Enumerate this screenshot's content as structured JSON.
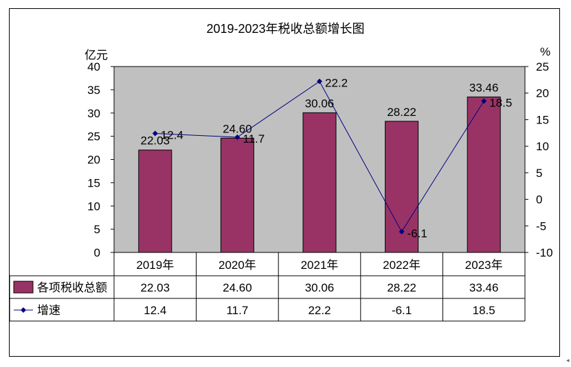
{
  "chart_data": {
    "type": "bar",
    "title": "2019-2023年税收总额增长图",
    "categories": [
      "2019年",
      "2020年",
      "2021年",
      "2022年",
      "2023年"
    ],
    "y_left": {
      "unit": "亿元",
      "ylim": [
        0,
        40
      ],
      "ticks": [
        0,
        5,
        10,
        15,
        20,
        25,
        30,
        35,
        40
      ]
    },
    "y_right": {
      "unit": "%",
      "ylim": [
        -10,
        25
      ],
      "ticks": [
        -10,
        -5,
        0,
        5,
        10,
        15,
        20,
        25
      ]
    },
    "series": [
      {
        "name": "各项税收总额",
        "kind": "bar",
        "axis": "left",
        "color": "#993366",
        "values": [
          22.03,
          24.6,
          30.06,
          28.22,
          33.46
        ],
        "labels": [
          "22.03",
          "24.60",
          "30.06",
          "28.22",
          "33.46"
        ]
      },
      {
        "name": "增速",
        "kind": "line",
        "axis": "right",
        "color": "#000080",
        "values": [
          12.4,
          11.7,
          22.2,
          -6.1,
          18.5
        ],
        "labels": [
          "12.4",
          "11.7",
          "22.2",
          "-6.1",
          "18.5"
        ]
      }
    ],
    "plot_background": "#c0c0c0",
    "grid": false,
    "legend": "data-table-below"
  },
  "corner_mark": "◂"
}
